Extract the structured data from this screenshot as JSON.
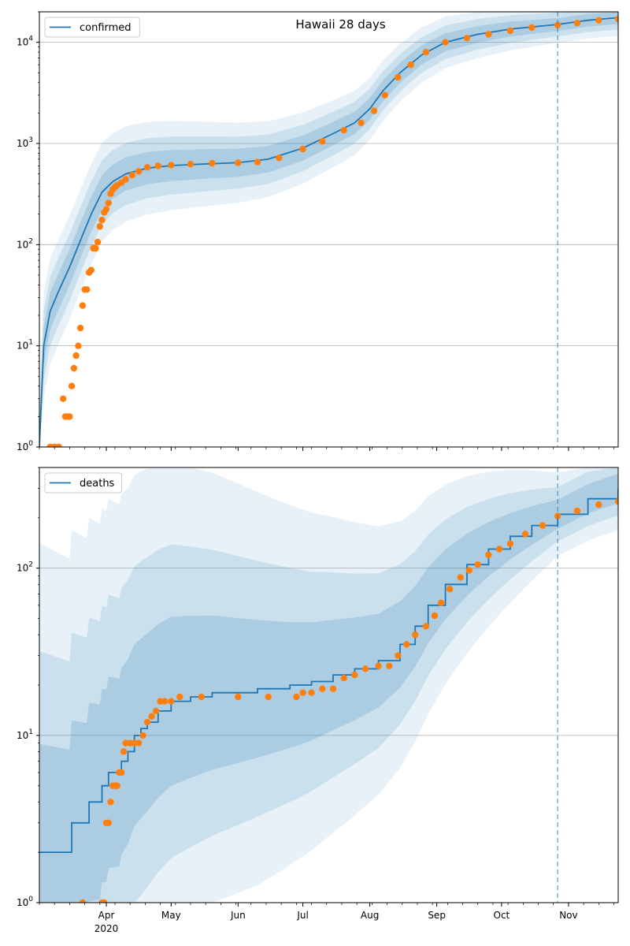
{
  "colors": {
    "model_line": "#1f77b4",
    "band": "#1f77b4",
    "observed": "#ff7f0e",
    "grid": "#b0b0b0",
    "today_line": "#1f77b4"
  },
  "chart_data": [
    {
      "type": "line",
      "title": "Hawaii 28 days",
      "yscale": "log",
      "ylim": [
        1,
        20000
      ],
      "xlim": [
        "2020-03-01",
        "2020-11-24"
      ],
      "grid": "y",
      "legend": {
        "placement": "upper-left",
        "label": "confirmed"
      },
      "x_tick_labels": [],
      "y_ticks": [
        {
          "value": 1,
          "base": "10",
          "exp": "0"
        },
        {
          "value": 10,
          "base": "10",
          "exp": "1"
        },
        {
          "value": 100,
          "base": "10",
          "exp": "2"
        },
        {
          "value": 1000,
          "base": "10",
          "exp": "3"
        },
        {
          "value": 10000,
          "base": "10",
          "exp": "4"
        }
      ],
      "forecast_start": "2020-10-27",
      "model": [
        [
          "2020-03-01",
          1
        ],
        [
          "2020-03-03",
          10
        ],
        [
          "2020-03-06",
          22
        ],
        [
          "2020-03-10",
          35
        ],
        [
          "2020-03-15",
          60
        ],
        [
          "2020-03-20",
          110
        ],
        [
          "2020-03-25",
          200
        ],
        [
          "2020-03-30",
          330
        ],
        [
          "2020-04-04",
          420
        ],
        [
          "2020-04-10",
          500
        ],
        [
          "2020-04-20",
          570
        ],
        [
          "2020-05-01",
          605
        ],
        [
          "2020-05-15",
          625
        ],
        [
          "2020-06-01",
          645
        ],
        [
          "2020-06-15",
          700
        ],
        [
          "2020-07-01",
          900
        ],
        [
          "2020-07-15",
          1250
        ],
        [
          "2020-07-25",
          1600
        ],
        [
          "2020-08-01",
          2200
        ],
        [
          "2020-08-07",
          3300
        ],
        [
          "2020-08-15",
          5000
        ],
        [
          "2020-08-25",
          7500
        ],
        [
          "2020-09-05",
          10000
        ],
        [
          "2020-09-20",
          12000
        ],
        [
          "2020-10-05",
          13500
        ],
        [
          "2020-10-20",
          14500
        ],
        [
          "2020-10-27",
          15000
        ],
        [
          "2020-11-10",
          16500
        ],
        [
          "2020-11-24",
          17500
        ]
      ],
      "observed": [
        [
          "2020-03-06",
          1
        ],
        [
          "2020-03-08",
          1
        ],
        [
          "2020-03-10",
          1
        ],
        [
          "2020-03-12",
          3
        ],
        [
          "2020-03-13",
          2
        ],
        [
          "2020-03-14",
          2
        ],
        [
          "2020-03-15",
          2
        ],
        [
          "2020-03-16",
          4
        ],
        [
          "2020-03-17",
          6
        ],
        [
          "2020-03-18",
          8
        ],
        [
          "2020-03-19",
          10
        ],
        [
          "2020-03-20",
          15
        ],
        [
          "2020-03-21",
          25
        ],
        [
          "2020-03-22",
          36
        ],
        [
          "2020-03-23",
          36
        ],
        [
          "2020-03-24",
          53
        ],
        [
          "2020-03-25",
          56
        ],
        [
          "2020-03-26",
          92
        ],
        [
          "2020-03-27",
          92
        ],
        [
          "2020-03-28",
          106
        ],
        [
          "2020-03-29",
          151
        ],
        [
          "2020-03-30",
          175
        ],
        [
          "2020-03-31",
          208
        ],
        [
          "2020-04-01",
          224
        ],
        [
          "2020-04-02",
          258
        ],
        [
          "2020-04-03",
          319
        ],
        [
          "2020-04-04",
          351
        ],
        [
          "2020-04-05",
          371
        ],
        [
          "2020-04-06",
          387
        ],
        [
          "2020-04-08",
          410
        ],
        [
          "2020-04-10",
          442
        ],
        [
          "2020-04-13",
          486
        ],
        [
          "2020-04-16",
          530
        ],
        [
          "2020-04-20",
          580
        ],
        [
          "2020-04-25",
          601
        ],
        [
          "2020-05-01",
          611
        ],
        [
          "2020-05-10",
          625
        ],
        [
          "2020-05-20",
          637
        ],
        [
          "2020-06-01",
          645
        ],
        [
          "2020-06-10",
          655
        ],
        [
          "2020-06-20",
          720
        ],
        [
          "2020-07-01",
          880
        ],
        [
          "2020-07-10",
          1050
        ],
        [
          "2020-07-20",
          1350
        ],
        [
          "2020-07-28",
          1600
        ],
        [
          "2020-08-03",
          2100
        ],
        [
          "2020-08-08",
          3000
        ],
        [
          "2020-08-14",
          4500
        ],
        [
          "2020-08-20",
          6000
        ],
        [
          "2020-08-27",
          8000
        ],
        [
          "2020-09-05",
          10000
        ],
        [
          "2020-09-15",
          11000
        ],
        [
          "2020-09-25",
          12000
        ],
        [
          "2020-10-05",
          13000
        ],
        [
          "2020-10-15",
          14000
        ],
        [
          "2020-10-27",
          14800
        ],
        [
          "2020-11-05",
          15500
        ],
        [
          "2020-11-15",
          16500
        ],
        [
          "2020-11-24",
          17000
        ]
      ]
    },
    {
      "type": "line",
      "title": "",
      "yscale": "log",
      "ylim": [
        1,
        400
      ],
      "xlim": [
        "2020-03-01",
        "2020-11-24"
      ],
      "grid": "y",
      "legend": {
        "placement": "upper-left",
        "label": "deaths"
      },
      "x_tick_labels": [
        {
          "date": "2020-04-01",
          "label": "Apr",
          "sub": "2020"
        },
        {
          "date": "2020-05-01",
          "label": "May",
          "sub": ""
        },
        {
          "date": "2020-06-01",
          "label": "Jun",
          "sub": ""
        },
        {
          "date": "2020-07-01",
          "label": "Jul",
          "sub": ""
        },
        {
          "date": "2020-08-01",
          "label": "Aug",
          "sub": ""
        },
        {
          "date": "2020-09-01",
          "label": "Sep",
          "sub": ""
        },
        {
          "date": "2020-10-01",
          "label": "Oct",
          "sub": ""
        },
        {
          "date": "2020-11-01",
          "label": "Nov",
          "sub": ""
        }
      ],
      "y_ticks": [
        {
          "value": 1,
          "base": "10",
          "exp": "0"
        },
        {
          "value": 10,
          "base": "10",
          "exp": "1"
        },
        {
          "value": 100,
          "base": "10",
          "exp": "2"
        }
      ],
      "forecast_start": "2020-10-27",
      "model": [
        [
          "2020-03-01",
          2
        ],
        [
          "2020-03-15",
          2
        ],
        [
          "2020-03-16",
          3
        ],
        [
          "2020-03-23",
          3
        ],
        [
          "2020-03-24",
          4
        ],
        [
          "2020-03-29",
          4
        ],
        [
          "2020-03-30",
          5
        ],
        [
          "2020-04-01",
          5
        ],
        [
          "2020-04-02",
          6
        ],
        [
          "2020-04-07",
          6
        ],
        [
          "2020-04-08",
          7
        ],
        [
          "2020-04-11",
          8
        ],
        [
          "2020-04-14",
          10
        ],
        [
          "2020-04-17",
          11
        ],
        [
          "2020-04-20",
          12
        ],
        [
          "2020-04-25",
          14
        ],
        [
          "2020-05-01",
          16
        ],
        [
          "2020-05-10",
          17
        ],
        [
          "2020-05-20",
          18
        ],
        [
          "2020-06-10",
          19
        ],
        [
          "2020-06-25",
          20
        ],
        [
          "2020-07-05",
          21
        ],
        [
          "2020-07-15",
          23
        ],
        [
          "2020-07-25",
          25
        ],
        [
          "2020-08-05",
          28
        ],
        [
          "2020-08-15",
          35
        ],
        [
          "2020-08-22",
          45
        ],
        [
          "2020-08-28",
          60
        ],
        [
          "2020-09-05",
          80
        ],
        [
          "2020-09-15",
          105
        ],
        [
          "2020-09-25",
          130
        ],
        [
          "2020-10-05",
          155
        ],
        [
          "2020-10-15",
          180
        ],
        [
          "2020-10-27",
          210
        ],
        [
          "2020-11-10",
          260
        ],
        [
          "2020-11-24",
          300
        ]
      ],
      "observed": [
        [
          "2020-03-21",
          1
        ],
        [
          "2020-03-30",
          1
        ],
        [
          "2020-03-31",
          1
        ],
        [
          "2020-04-01",
          3
        ],
        [
          "2020-04-02",
          3
        ],
        [
          "2020-04-03",
          4
        ],
        [
          "2020-04-04",
          5
        ],
        [
          "2020-04-05",
          5
        ],
        [
          "2020-04-06",
          5
        ],
        [
          "2020-04-07",
          6
        ],
        [
          "2020-04-08",
          6
        ],
        [
          "2020-04-09",
          8
        ],
        [
          "2020-04-10",
          9
        ],
        [
          "2020-04-12",
          9
        ],
        [
          "2020-04-14",
          9
        ],
        [
          "2020-04-16",
          9
        ],
        [
          "2020-04-18",
          10
        ],
        [
          "2020-04-20",
          12
        ],
        [
          "2020-04-22",
          13
        ],
        [
          "2020-04-24",
          14
        ],
        [
          "2020-04-26",
          16
        ],
        [
          "2020-04-28",
          16
        ],
        [
          "2020-05-01",
          16
        ],
        [
          "2020-05-05",
          17
        ],
        [
          "2020-05-15",
          17
        ],
        [
          "2020-06-01",
          17
        ],
        [
          "2020-06-15",
          17
        ],
        [
          "2020-06-28",
          17
        ],
        [
          "2020-07-01",
          18
        ],
        [
          "2020-07-05",
          18
        ],
        [
          "2020-07-10",
          19
        ],
        [
          "2020-07-15",
          19
        ],
        [
          "2020-07-20",
          22
        ],
        [
          "2020-07-25",
          23
        ],
        [
          "2020-07-30",
          25
        ],
        [
          "2020-08-05",
          26
        ],
        [
          "2020-08-10",
          26
        ],
        [
          "2020-08-14",
          30
        ],
        [
          "2020-08-18",
          35
        ],
        [
          "2020-08-22",
          40
        ],
        [
          "2020-08-27",
          45
        ],
        [
          "2020-08-31",
          52
        ],
        [
          "2020-09-03",
          62
        ],
        [
          "2020-09-07",
          75
        ],
        [
          "2020-09-12",
          88
        ],
        [
          "2020-09-16",
          97
        ],
        [
          "2020-09-20",
          105
        ],
        [
          "2020-09-25",
          120
        ],
        [
          "2020-09-30",
          130
        ],
        [
          "2020-10-05",
          140
        ],
        [
          "2020-10-12",
          160
        ],
        [
          "2020-10-20",
          180
        ],
        [
          "2020-10-27",
          205
        ],
        [
          "2020-11-05",
          220
        ],
        [
          "2020-11-15",
          240
        ],
        [
          "2020-11-24",
          250
        ]
      ]
    }
  ]
}
